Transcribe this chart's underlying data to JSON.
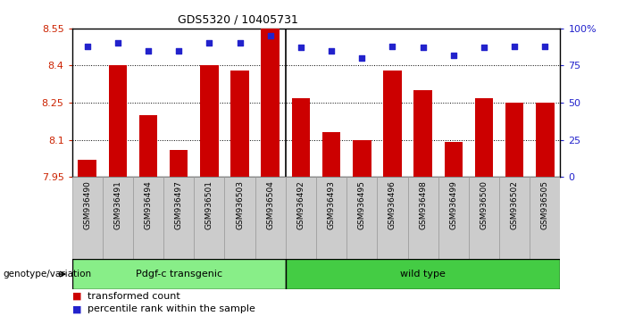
{
  "title": "GDS5320 / 10405731",
  "samples": [
    "GSM936490",
    "GSM936491",
    "GSM936494",
    "GSM936497",
    "GSM936501",
    "GSM936503",
    "GSM936504",
    "GSM936492",
    "GSM936493",
    "GSM936495",
    "GSM936496",
    "GSM936498",
    "GSM936499",
    "GSM936500",
    "GSM936502",
    "GSM936505"
  ],
  "bar_values": [
    8.02,
    8.4,
    8.2,
    8.06,
    8.4,
    8.38,
    8.55,
    8.27,
    8.13,
    8.1,
    8.38,
    8.3,
    8.09,
    8.27,
    8.25,
    8.25
  ],
  "percentile_values": [
    88,
    90,
    85,
    85,
    90,
    90,
    95,
    87,
    85,
    80,
    88,
    87,
    82,
    87,
    88,
    88
  ],
  "bar_color": "#cc0000",
  "dot_color": "#2222cc",
  "ylim_left": [
    7.95,
    8.55
  ],
  "ylim_right": [
    0,
    100
  ],
  "yticks_left": [
    7.95,
    8.1,
    8.25,
    8.4,
    8.55
  ],
  "ytick_labels_left": [
    "7.95",
    "8.1",
    "8.25",
    "8.4",
    "8.55"
  ],
  "yticks_right": [
    0,
    25,
    50,
    75,
    100
  ],
  "ytick_labels_right": [
    "0",
    "25",
    "50",
    "75",
    "100%"
  ],
  "group1_label": "Pdgf-c transgenic",
  "group2_label": "wild type",
  "group1_count": 7,
  "group2_count": 9,
  "group1_color": "#88ee88",
  "group2_color": "#44cc44",
  "genotype_label": "genotype/variation",
  "legend_bar_label": "transformed count",
  "legend_dot_label": "percentile rank within the sample",
  "bg_color": "#ffffff",
  "tick_label_color_left": "#cc2200",
  "tick_label_color_right": "#2222cc",
  "xticklabel_bg": "#cccccc"
}
